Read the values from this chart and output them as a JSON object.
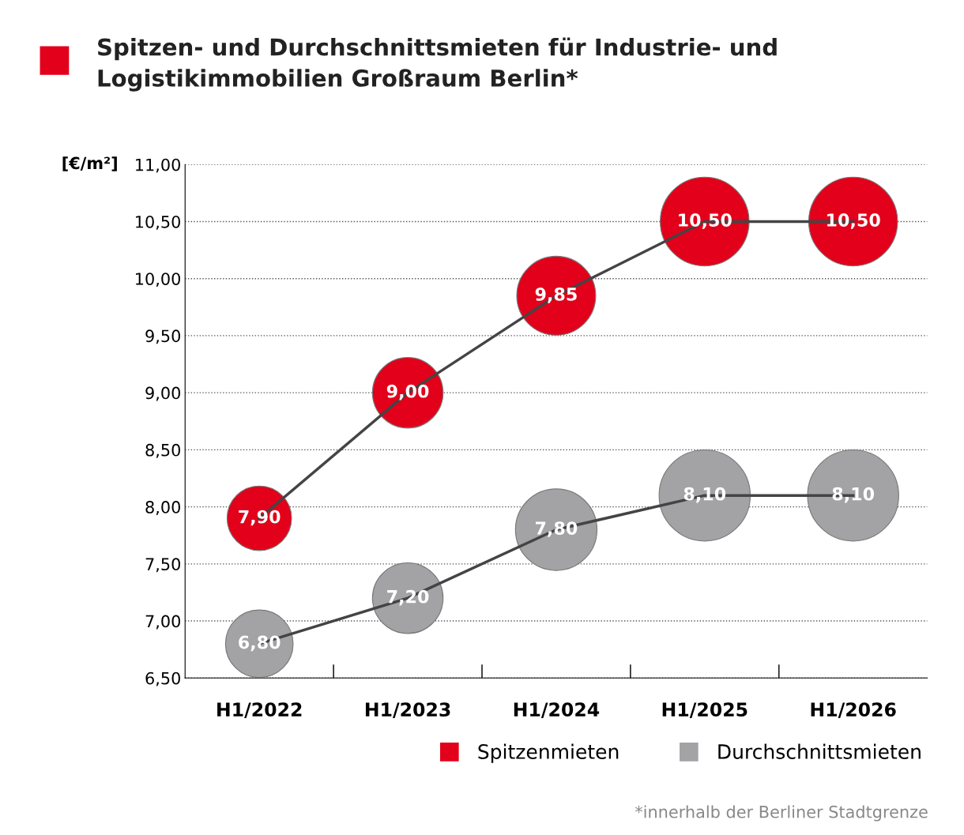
{
  "chart_data": {
    "type": "bubble",
    "title": "Spitzen- und Durchschnittsmieten für Industrie- und Logistikimmobilien Großraum Berlin*",
    "ylabel": "[€/m²]",
    "categories": [
      "H1/2022",
      "H1/2023",
      "H1/2024",
      "H1/2025",
      "H1/2026"
    ],
    "series": [
      {
        "type": "line",
        "color": "#444444",
        "values": [
          7.9,
          9.0,
          9.85,
          10.5,
          10.5
        ]
      },
      {
        "type": "line",
        "color": "#444444",
        "values": [
          6.8,
          7.2,
          7.8,
          8.1,
          8.1
        ]
      },
      {
        "name": "Spitzenmieten",
        "color": "#e2001a",
        "values": [
          7.9,
          9.0,
          9.85,
          10.5,
          10.5
        ],
        "sizes": [
          0.5,
          0.6,
          0.75,
          0.95,
          0.95
        ],
        "value_labels": [
          "7,90",
          "9,00",
          "9,85",
          "10,50",
          "10,50"
        ]
      },
      {
        "name": "Durchschnittsmieten",
        "color": "#a3a3a5",
        "values": [
          6.8,
          7.2,
          7.8,
          8.1,
          8.1
        ],
        "sizes": [
          0.55,
          0.6,
          0.8,
          1,
          1
        ],
        "value_labels": [
          "6,80",
          "7,20",
          "7,80",
          "8,10",
          "8,10"
        ]
      }
    ],
    "ylim": [
      6.5,
      11.0
    ],
    "yticks": [
      {
        "value": 6.5,
        "label": "6,50"
      },
      {
        "value": 7.0,
        "label": "7,00"
      },
      {
        "value": 7.5,
        "label": "7,50"
      },
      {
        "value": 8.0,
        "label": "8,00"
      },
      {
        "value": 8.5,
        "label": "8,50"
      },
      {
        "value": 9.0,
        "label": "9,00"
      },
      {
        "value": 9.5,
        "label": "9,50"
      },
      {
        "value": 10.0,
        "label": "10,00"
      },
      {
        "value": 10.5,
        "label": "10,50"
      },
      {
        "value": 11.0,
        "label": "11,00"
      }
    ],
    "grid": "y",
    "legend": "bottom right",
    "line_style": "solid",
    "annotations": [
      "*innerhalb der Berliner Stadtgrenze"
    ]
  }
}
